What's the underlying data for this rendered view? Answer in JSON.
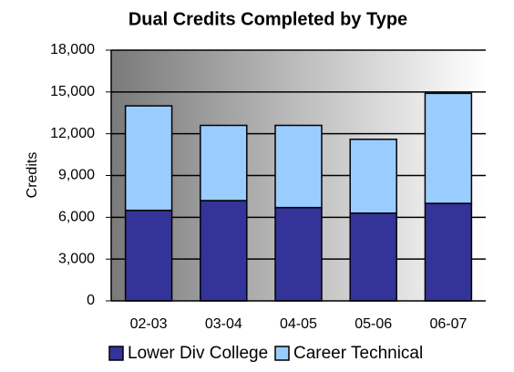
{
  "chart_data": {
    "type": "stacked_bar",
    "title": "Dual Credits Completed by Type",
    "y_label": "Credits",
    "categories": [
      "02-03",
      "03-04",
      "04-05",
      "05-06",
      "06-07"
    ],
    "series": [
      {
        "name": "Lower Div College",
        "color": "#333399",
        "values": [
          6500,
          7200,
          6700,
          6300,
          7000
        ]
      },
      {
        "name": "Career Technical",
        "color": "#99ccff",
        "values": [
          7500,
          5400,
          5900,
          5300,
          7900
        ]
      }
    ],
    "ylim": [
      0,
      18000
    ],
    "yticks": [
      0,
      {
        "value": 3000,
        "label": "3,000"
      },
      {
        "value": 6000,
        "label": "6,000"
      },
      {
        "value": 9000,
        "label": "9,000"
      },
      {
        "value": 12000,
        "label": "12,000"
      },
      {
        "value": 15000,
        "label": "15,000"
      },
      {
        "value": 18000,
        "label": "18,000"
      }
    ],
    "grid": true,
    "legend": "bottom"
  }
}
